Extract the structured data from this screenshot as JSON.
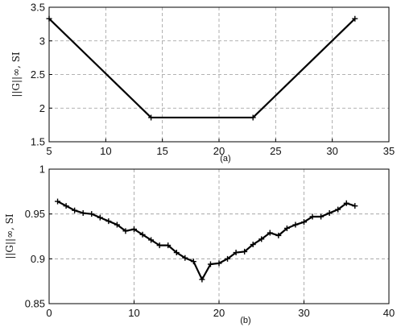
{
  "chart_data": [
    {
      "type": "line",
      "caption": "(a)",
      "ylabel": "||G||∞, SI",
      "xlim": [
        5,
        35
      ],
      "ylim": [
        1.5,
        3.5
      ],
      "xticks": [
        "5",
        "10",
        "15",
        "20",
        "25",
        "30",
        "35"
      ],
      "yticks": [
        "1.5",
        "2",
        "2.5",
        "3",
        "3.5"
      ],
      "grid": true,
      "series": [
        {
          "x": [
            5,
            14,
            23,
            32
          ],
          "y": [
            3.33,
            1.86,
            1.86,
            3.33
          ]
        }
      ]
    },
    {
      "type": "line",
      "caption": "(b)",
      "ylabel": "||G||∞, SI",
      "xlim": [
        0,
        40
      ],
      "ylim": [
        0.85,
        1
      ],
      "xticks": [
        "0",
        "10",
        "20",
        "30",
        "40"
      ],
      "yticks": [
        "0.85",
        "0.9",
        "0.95",
        "1"
      ],
      "grid": true,
      "series": [
        {
          "x": [
            1,
            2,
            3,
            4,
            5,
            6,
            7,
            8,
            9,
            10,
            11,
            12,
            13,
            14,
            15,
            16,
            17,
            18,
            19,
            20,
            21,
            22,
            23,
            24,
            25,
            26,
            27,
            28,
            29,
            30,
            31,
            32,
            33,
            34,
            35,
            36
          ],
          "y": [
            0.964,
            0.959,
            0.954,
            0.951,
            0.95,
            0.946,
            0.942,
            0.938,
            0.931,
            0.933,
            0.927,
            0.921,
            0.915,
            0.915,
            0.907,
            0.901,
            0.897,
            0.877,
            0.894,
            0.895,
            0.9,
            0.907,
            0.908,
            0.916,
            0.922,
            0.929,
            0.926,
            0.934,
            0.938,
            0.941,
            0.947,
            0.947,
            0.951,
            0.955,
            0.962,
            0.959
          ]
        }
      ]
    }
  ]
}
